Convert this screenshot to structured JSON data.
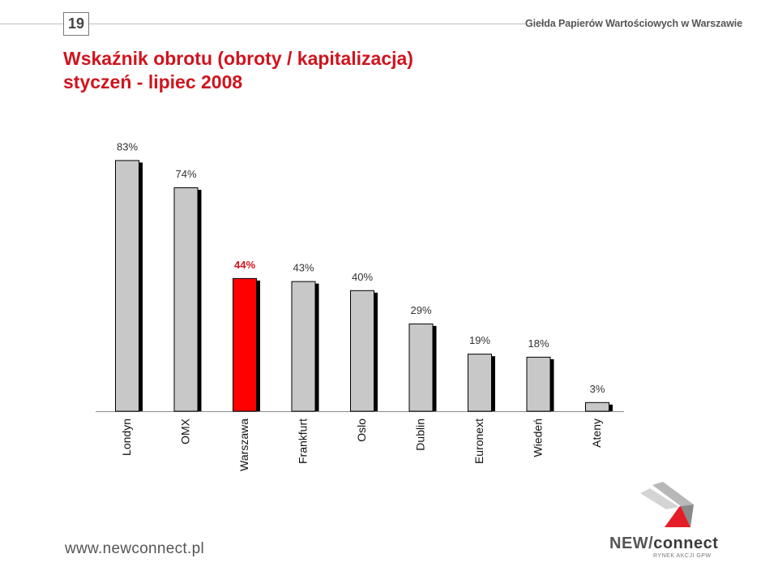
{
  "header": {
    "page_number": "19",
    "exchange_name": "Giełda Papierów Wartościowych w Warszawie"
  },
  "title": {
    "line1": "Wskaźnik obrotu (obroty / kapitalizacja)",
    "line2": "styczeń - lipiec 2008"
  },
  "chart_data": {
    "type": "bar",
    "title": "Wskaźnik obrotu (obroty / kapitalizacja) styczeń - lipiec 2008",
    "xlabel": "",
    "ylabel": "",
    "ylim": [
      0,
      100
    ],
    "grid": false,
    "legend": "none",
    "categories": [
      "Londyn",
      "OMX",
      "Warszawa",
      "Frankfurt",
      "Oslo",
      "Dublin",
      "Euronext",
      "Wiedeń",
      "Ateny"
    ],
    "values": [
      83,
      74,
      44,
      43,
      40,
      29,
      19,
      18,
      3
    ],
    "value_labels": [
      "83%",
      "74%",
      "44%",
      "43%",
      "40%",
      "29%",
      "19%",
      "18%",
      "3%"
    ],
    "highlight_index": 2,
    "colors": {
      "bar": "#c8c8c8",
      "highlight": "#ff0000",
      "shadow": "#000000",
      "highlight_label": "#d0141e",
      "label": "#333333"
    }
  },
  "footer": {
    "url": "www.newconnect.pl",
    "brand": "NEW/connect",
    "brand_part1": "NEW/",
    "brand_part2": "connect",
    "tagline": "RYNEK AKCJI GPW"
  }
}
